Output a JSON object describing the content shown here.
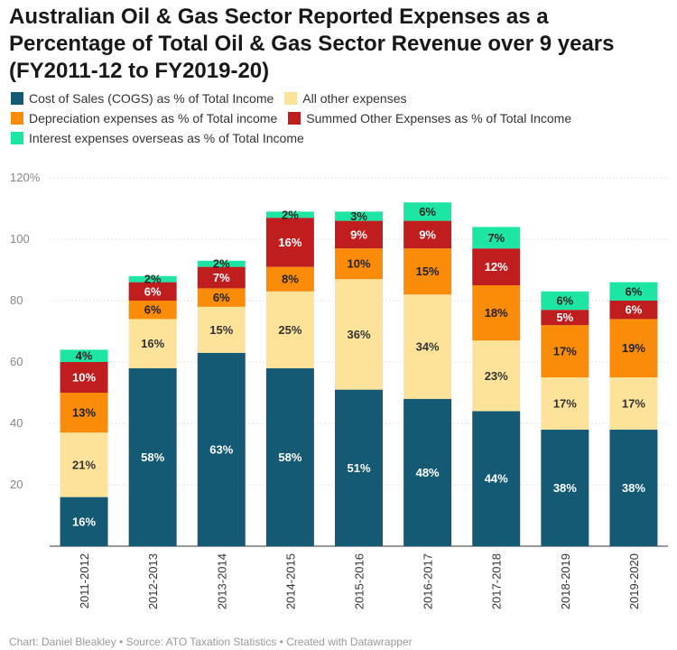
{
  "title": "Australian Oil & Gas Sector Reported Expenses as a Percentage of Total Oil & Gas Sector Revenue over 9 years (FY2011-12 to FY2019-20)",
  "legend": {
    "row1": [
      {
        "label": "Cost of Sales (COGS) as % of Total Income",
        "color": "#155a75"
      },
      {
        "label": "All other expenses",
        "color": "#fde39a"
      }
    ],
    "row2": [
      {
        "label": "Depreciation expenses as % of Total income",
        "color": "#fa8c0a"
      },
      {
        "label": "Summed Other Expenses as % of Total Income",
        "color": "#c01d1f"
      }
    ],
    "row3": [
      {
        "label": "Interest expenses overseas as % of Total Income",
        "color": "#1de5a3"
      }
    ]
  },
  "footer": "Chart: Daniel Bleakley • Source: ATO Taxation Statistics • Created with Datawrapper",
  "chart_data": {
    "type": "bar",
    "stacked": true,
    "categories": [
      "2011-2012",
      "2012-2013",
      "2013-2014",
      "2014-2015",
      "2015-2016",
      "2016-2017",
      "2017-2018",
      "2018-2019",
      "2019-2020"
    ],
    "ylim": [
      0,
      120
    ],
    "yticks": [
      20,
      40,
      60,
      80,
      100,
      120
    ],
    "ytick_labels": [
      "20",
      "40",
      "60",
      "80",
      "100",
      "120%"
    ],
    "grid": true,
    "series": [
      {
        "name": "Cost of Sales (COGS) as % of Total Income",
        "color": "#155a75",
        "label_color": "#ffffff",
        "values": [
          16,
          58,
          63,
          58,
          51,
          48,
          44,
          38,
          38
        ]
      },
      {
        "name": "All other expenses",
        "color": "#fde39a",
        "label_color": "#333333",
        "values": [
          21,
          16,
          15,
          25,
          36,
          34,
          23,
          17,
          17
        ]
      },
      {
        "name": "Depreciation expenses as % of Total income",
        "color": "#fa8c0a",
        "label_color": "#222222",
        "values": [
          13,
          6,
          6,
          8,
          10,
          15,
          18,
          17,
          19
        ]
      },
      {
        "name": "Summed Other Expenses as % of Total Income",
        "color": "#c01d1f",
        "label_color": "#ffffff",
        "values": [
          10,
          6,
          7,
          16,
          9,
          9,
          12,
          5,
          6
        ]
      },
      {
        "name": "Interest expenses overseas as % of Total Income",
        "color": "#1de5a3",
        "label_color": "#222222",
        "values": [
          4,
          2,
          2,
          2,
          3,
          6,
          7,
          6,
          6
        ]
      }
    ]
  }
}
